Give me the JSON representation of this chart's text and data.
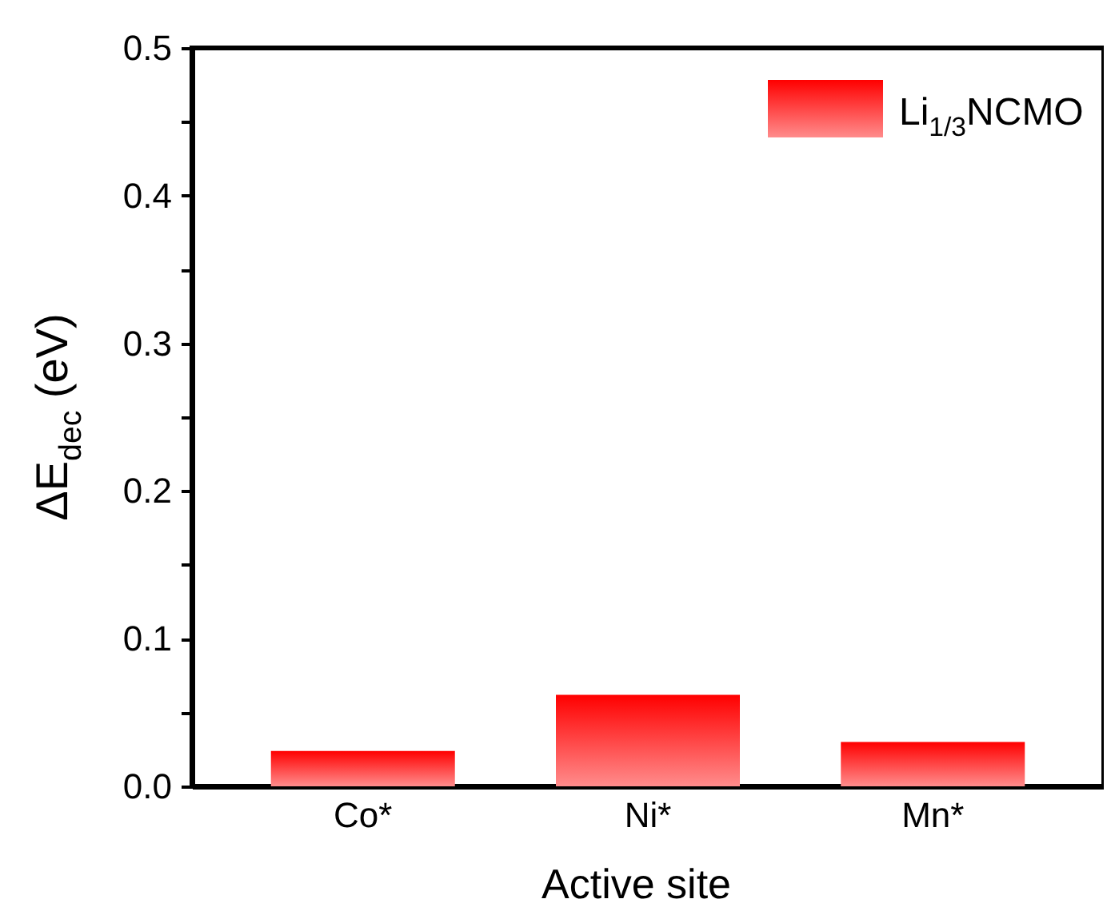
{
  "chart_data": {
    "type": "bar",
    "xlabel": "Active site",
    "ylabel": "ΔE$_{dec}$ (eV)",
    "categories": [
      "Co*",
      "Ni*",
      "Mn*"
    ],
    "series": [
      {
        "name": "Li$_{1/3}$NCMO",
        "color": "#ff0000",
        "values": [
          0.024,
          0.062,
          0.03
        ]
      }
    ],
    "ylim": [
      0,
      0.5
    ],
    "yticks": [
      {
        "value": 0,
        "label": "0.0"
      },
      {
        "value": 0.05,
        "label": null
      },
      0.1,
      {
        "value": 0.15,
        "label": null
      },
      0.2,
      {
        "value": 0.25,
        "label": null
      },
      0.3,
      {
        "value": 0.35,
        "label": null
      },
      0.4,
      {
        "value": 0.45,
        "label": null
      },
      0.5
    ],
    "grid": false,
    "legend": "top right"
  }
}
